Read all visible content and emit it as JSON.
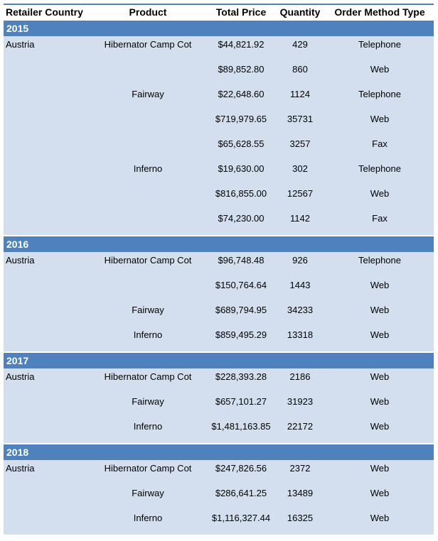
{
  "header": {
    "columns": [
      "Retailer Country",
      "Product",
      "Total Price",
      "Quantity",
      "Order Method Type"
    ]
  },
  "groups": [
    {
      "year": 2015,
      "rows": [
        {
          "country": "Austria",
          "product": "Hibernator Camp Cot",
          "total_price": "$44,821.92",
          "quantity": 429,
          "order_method": "Telephone"
        },
        {
          "total_price": "$89,852.80",
          "quantity": 860,
          "order_method": "Web"
        },
        {
          "product": "Fairway",
          "total_price": "$22,648.60",
          "quantity": 1124,
          "order_method": "Telephone"
        },
        {
          "total_price": "$719,979.65",
          "quantity": 35731,
          "order_method": "Web"
        },
        {
          "total_price": "$65,628.55",
          "quantity": 3257,
          "order_method": "Fax"
        },
        {
          "product": "Inferno",
          "total_price": "$19,630.00",
          "quantity": 302,
          "order_method": "Telephone"
        },
        {
          "total_price": "$816,855.00",
          "quantity": 12567,
          "order_method": "Web"
        },
        {
          "total_price": "$74,230.00",
          "quantity": 1142,
          "order_method": "Fax"
        }
      ]
    },
    {
      "year": 2016,
      "rows": [
        {
          "country": "Austria",
          "product": "Hibernator Camp Cot",
          "total_price": "$96,748.48",
          "quantity": 926,
          "order_method": "Telephone"
        },
        {
          "total_price": "$150,764.64",
          "quantity": 1443,
          "order_method": "Web"
        },
        {
          "product": "Fairway",
          "total_price": "$689,794.95",
          "quantity": 34233,
          "order_method": "Web"
        },
        {
          "product": "Inferno",
          "total_price": "$859,495.29",
          "quantity": 13318,
          "order_method": "Web"
        }
      ]
    },
    {
      "year": 2017,
      "rows": [
        {
          "country": "Austria",
          "product": "Hibernator Camp Cot",
          "total_price": "$228,393.28",
          "quantity": 2186,
          "order_method": "Web"
        },
        {
          "product": "Fairway",
          "total_price": "$657,101.27",
          "quantity": 31923,
          "order_method": "Web"
        },
        {
          "product": "Inferno",
          "total_price": "$1,481,163.85",
          "quantity": 22172,
          "order_method": "Web"
        }
      ]
    },
    {
      "year": 2018,
      "rows": [
        {
          "country": "Austria",
          "product": "Hibernator Camp Cot",
          "total_price": "$247,826.56",
          "quantity": 2372,
          "order_method": "Web"
        },
        {
          "product": "Fairway",
          "total_price": "$286,641.25",
          "quantity": 13489,
          "order_method": "Web"
        },
        {
          "product": "Inferno",
          "total_price": "$1,116,327.44",
          "quantity": 16325,
          "order_method": "Web"
        }
      ]
    }
  ]
}
